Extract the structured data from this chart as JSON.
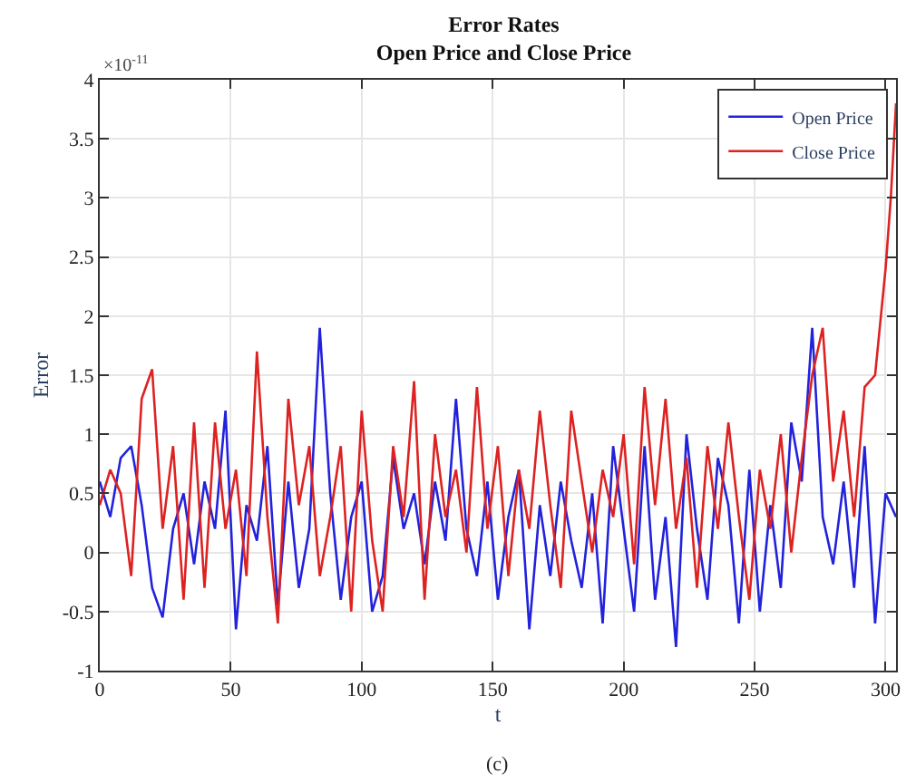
{
  "chart_data": {
    "type": "line",
    "title": "Error Rates",
    "subtitle": "Open Price and Close Price",
    "xlabel": "t",
    "ylabel": "Error",
    "annotations": [
      "×10$^{-11}$",
      "(c)"
    ],
    "xlim": [
      0,
      304
    ],
    "xticks": [
      0,
      50,
      100,
      150,
      200,
      250,
      300
    ],
    "ylim": [
      -1,
      4
    ],
    "yticks": [
      -1,
      -0.5,
      0,
      0.5,
      1,
      1.5,
      2,
      2.5,
      3,
      3.5,
      4
    ],
    "grid": true,
    "legend": "top right",
    "marker": "none",
    "line_style": "solid",
    "series": [
      {
        "name": "Open Price",
        "color": "#2222dd",
        "x": [
          0,
          4,
          8,
          12,
          16,
          20,
          24,
          28,
          32,
          36,
          40,
          44,
          48,
          52,
          56,
          60,
          64,
          68,
          72,
          76,
          80,
          84,
          88,
          92,
          96,
          100,
          104,
          108,
          112,
          116,
          120,
          124,
          128,
          132,
          136,
          140,
          144,
          148,
          152,
          156,
          160,
          164,
          168,
          172,
          176,
          180,
          184,
          188,
          192,
          196,
          200,
          204,
          208,
          212,
          216,
          220,
          224,
          228,
          232,
          236,
          240,
          244,
          248,
          252,
          256,
          260,
          264,
          268,
          272,
          276,
          280,
          284,
          288,
          292,
          296,
          300,
          304
        ],
        "values": [
          0.6,
          0.3,
          0.8,
          0.9,
          0.4,
          -0.3,
          -0.55,
          0.2,
          0.5,
          -0.1,
          0.6,
          0.2,
          1.2,
          -0.65,
          0.4,
          0.1,
          0.9,
          -0.45,
          0.6,
          -0.3,
          0.2,
          1.9,
          0.5,
          -0.4,
          0.3,
          0.6,
          -0.5,
          -0.2,
          0.8,
          0.2,
          0.5,
          -0.1,
          0.6,
          0.1,
          1.3,
          0.2,
          -0.2,
          0.6,
          -0.4,
          0.3,
          0.7,
          -0.65,
          0.4,
          -0.2,
          0.6,
          0.1,
          -0.3,
          0.5,
          -0.6,
          0.9,
          0.2,
          -0.5,
          0.9,
          -0.4,
          0.3,
          -0.8,
          1.0,
          0.2,
          -0.4,
          0.8,
          0.4,
          -0.6,
          0.7,
          -0.5,
          0.4,
          -0.3,
          1.1,
          0.6,
          1.9,
          0.3,
          -0.1,
          0.6,
          -0.3,
          0.9,
          -0.6,
          0.5,
          0.3
        ]
      },
      {
        "name": "Close Price",
        "color": "#dd2222",
        "x": [
          0,
          4,
          8,
          12,
          16,
          20,
          24,
          28,
          32,
          36,
          40,
          44,
          48,
          52,
          56,
          60,
          64,
          68,
          72,
          76,
          80,
          84,
          88,
          92,
          96,
          100,
          104,
          108,
          112,
          116,
          120,
          124,
          128,
          132,
          136,
          140,
          144,
          148,
          152,
          156,
          160,
          164,
          168,
          172,
          176,
          180,
          184,
          188,
          192,
          196,
          200,
          204,
          208,
          212,
          216,
          220,
          224,
          228,
          232,
          236,
          240,
          244,
          248,
          252,
          256,
          260,
          264,
          268,
          272,
          276,
          280,
          284,
          288,
          292,
          296,
          300,
          302,
          304
        ],
        "values": [
          0.4,
          0.7,
          0.5,
          -0.2,
          1.3,
          1.55,
          0.2,
          0.9,
          -0.4,
          1.1,
          -0.3,
          1.1,
          0.2,
          0.7,
          -0.2,
          1.7,
          0.3,
          -0.6,
          1.3,
          0.4,
          0.9,
          -0.2,
          0.3,
          0.9,
          -0.5,
          1.2,
          0.1,
          -0.5,
          0.9,
          0.3,
          1.45,
          -0.4,
          1.0,
          0.3,
          0.7,
          0.0,
          1.4,
          0.2,
          0.9,
          -0.2,
          0.7,
          0.2,
          1.2,
          0.4,
          -0.3,
          1.2,
          0.6,
          0.0,
          0.7,
          0.3,
          1.0,
          -0.1,
          1.4,
          0.4,
          1.3,
          0.2,
          0.8,
          -0.3,
          0.9,
          0.2,
          1.1,
          0.3,
          -0.4,
          0.7,
          0.2,
          1.0,
          0.0,
          0.8,
          1.5,
          1.9,
          0.6,
          1.2,
          0.3,
          1.4,
          1.5,
          2.4,
          3.0,
          3.8
        ]
      }
    ]
  }
}
